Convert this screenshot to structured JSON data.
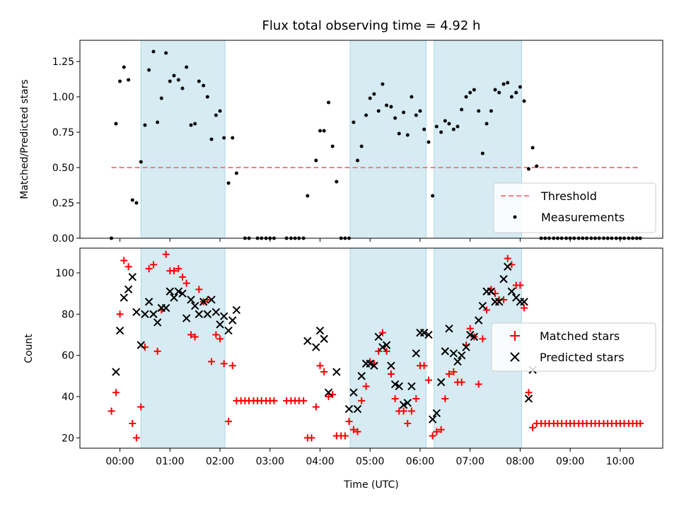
{
  "chart_data": [
    {
      "type": "scatter",
      "title": "Flux total observing time = 4.92 h",
      "xlabel": "",
      "ylabel": "Matched/Predicted stars",
      "xlim": [
        -0.8,
        10.85
      ],
      "ylim": [
        0,
        1.4
      ],
      "yticks": [
        0,
        0.25,
        0.5,
        0.75,
        1.0,
        1.25
      ],
      "ytick_labels": [
        "0.00",
        "0.25",
        "0.50",
        "0.75",
        "1.00",
        "1.25"
      ],
      "shaded_intervals": [
        [
          0.42,
          2.1
        ],
        [
          4.6,
          6.12
        ],
        [
          6.28,
          8.03
        ]
      ],
      "threshold": {
        "label": "Threshold",
        "value": 0.5,
        "x_range": [
          -0.17,
          10.37
        ],
        "color": "#f08080"
      },
      "measurements_label": "Measurements",
      "measurements": [
        [
          -0.17,
          0
        ],
        [
          -0.08,
          0.81
        ],
        [
          0.0,
          1.11
        ],
        [
          0.08,
          1.21
        ],
        [
          0.17,
          1.12
        ],
        [
          0.25,
          0.27
        ],
        [
          0.33,
          0.25
        ],
        [
          0.42,
          0.54
        ],
        [
          0.5,
          0.8
        ],
        [
          0.58,
          1.19
        ],
        [
          0.67,
          1.32
        ],
        [
          0.75,
          0.82
        ],
        [
          0.83,
          0.99
        ],
        [
          0.92,
          1.31
        ],
        [
          1.0,
          1.11
        ],
        [
          1.08,
          1.15
        ],
        [
          1.17,
          1.12
        ],
        [
          1.25,
          1.06
        ],
        [
          1.33,
          1.21
        ],
        [
          1.42,
          0.8
        ],
        [
          1.5,
          0.81
        ],
        [
          1.58,
          1.11
        ],
        [
          1.67,
          1.08
        ],
        [
          1.75,
          1.0
        ],
        [
          1.83,
          0.7
        ],
        [
          1.92,
          0.87
        ],
        [
          2.0,
          0.9
        ],
        [
          2.08,
          0.71
        ],
        [
          2.17,
          0.39
        ],
        [
          2.25,
          0.71
        ],
        [
          2.33,
          0.46
        ],
        [
          2.5,
          0
        ],
        [
          2.58,
          0
        ],
        [
          2.75,
          0
        ],
        [
          2.83,
          0
        ],
        [
          2.92,
          0
        ],
        [
          3.0,
          0
        ],
        [
          3.08,
          0
        ],
        [
          3.33,
          0
        ],
        [
          3.42,
          0
        ],
        [
          3.5,
          0
        ],
        [
          3.58,
          0
        ],
        [
          3.67,
          0
        ],
        [
          3.75,
          0.3
        ],
        [
          3.92,
          0.55
        ],
        [
          4.0,
          0.76
        ],
        [
          4.08,
          0.76
        ],
        [
          4.17,
          0.96
        ],
        [
          4.25,
          0.65
        ],
        [
          4.33,
          0.4
        ],
        [
          4.42,
          0
        ],
        [
          4.5,
          0
        ],
        [
          4.58,
          0
        ],
        [
          4.67,
          0.82
        ],
        [
          4.75,
          0.55
        ],
        [
          4.83,
          0.65
        ],
        [
          4.92,
          0.87
        ],
        [
          5.0,
          0.99
        ],
        [
          5.08,
          1.02
        ],
        [
          5.17,
          0.9
        ],
        [
          5.25,
          1.09
        ],
        [
          5.33,
          0.94
        ],
        [
          5.42,
          0.93
        ],
        [
          5.5,
          0.85
        ],
        [
          5.58,
          0.74
        ],
        [
          5.67,
          0.89
        ],
        [
          5.75,
          0.73
        ],
        [
          5.83,
          1.0
        ],
        [
          5.92,
          0.87
        ],
        [
          6.0,
          0.9
        ],
        [
          6.08,
          0.77
        ],
        [
          6.17,
          0.68
        ],
        [
          6.25,
          0.3
        ],
        [
          6.33,
          0.79
        ],
        [
          6.42,
          0.75
        ],
        [
          6.5,
          0.83
        ],
        [
          6.58,
          0.81
        ],
        [
          6.67,
          0.77
        ],
        [
          6.75,
          0.79
        ],
        [
          6.83,
          0.91
        ],
        [
          6.92,
          1.0
        ],
        [
          7.0,
          1.03
        ],
        [
          7.08,
          1.05
        ],
        [
          7.17,
          0.9
        ],
        [
          7.25,
          0.6
        ],
        [
          7.33,
          0.81
        ],
        [
          7.42,
          0.9
        ],
        [
          7.5,
          1.05
        ],
        [
          7.58,
          1.03
        ],
        [
          7.67,
          1.09
        ],
        [
          7.75,
          1.1
        ],
        [
          7.83,
          1.0
        ],
        [
          7.92,
          1.03
        ],
        [
          8.0,
          1.07
        ],
        [
          8.08,
          0.97
        ],
        [
          8.17,
          0.49
        ],
        [
          8.25,
          0.64
        ],
        [
          8.33,
          0.51
        ],
        [
          8.42,
          0
        ],
        [
          8.5,
          0
        ],
        [
          8.58,
          0
        ],
        [
          8.67,
          0
        ],
        [
          8.75,
          0
        ],
        [
          8.83,
          0
        ],
        [
          8.92,
          0
        ],
        [
          9.0,
          0
        ],
        [
          9.08,
          0
        ],
        [
          9.17,
          0
        ],
        [
          9.25,
          0
        ],
        [
          9.33,
          0
        ],
        [
          9.42,
          0
        ],
        [
          9.5,
          0
        ],
        [
          9.58,
          0
        ],
        [
          9.67,
          0
        ],
        [
          9.75,
          0
        ],
        [
          9.83,
          0
        ],
        [
          9.92,
          0
        ],
        [
          10.0,
          0
        ],
        [
          10.08,
          0
        ],
        [
          10.17,
          0
        ],
        [
          10.25,
          0
        ],
        [
          10.33,
          0
        ],
        [
          10.4,
          0
        ]
      ]
    },
    {
      "type": "scatter",
      "title": "",
      "xlabel": "Time (UTC)",
      "ylabel": "Count",
      "xlim": [
        -0.8,
        10.85
      ],
      "ylim": [
        15,
        112
      ],
      "yticks": [
        20,
        40,
        60,
        80,
        100
      ],
      "ytick_labels": [
        "20",
        "40",
        "60",
        "80",
        "100"
      ],
      "xticks": [
        0,
        1,
        2,
        3,
        4,
        5,
        6,
        7,
        8,
        9,
        10
      ],
      "xtick_labels": [
        "00:00",
        "01:00",
        "02:00",
        "03:00",
        "04:00",
        "05:00",
        "06:00",
        "07:00",
        "08:00",
        "09:00",
        "10:00"
      ],
      "shaded_intervals": [
        [
          0.42,
          2.1
        ],
        [
          4.6,
          6.12
        ],
        [
          6.28,
          8.03
        ]
      ],
      "matched_label": "Matched stars",
      "predicted_label": "Predicted stars",
      "matched_color": "#ff0000",
      "predicted_color": "#000000",
      "matched": [
        [
          -0.17,
          33
        ],
        [
          -0.08,
          42
        ],
        [
          0.0,
          80
        ],
        [
          0.08,
          106
        ],
        [
          0.17,
          103
        ],
        [
          0.25,
          27
        ],
        [
          0.33,
          20
        ],
        [
          0.42,
          35
        ],
        [
          0.5,
          64
        ],
        [
          0.58,
          102
        ],
        [
          0.67,
          104
        ],
        [
          0.75,
          62
        ],
        [
          0.83,
          82
        ],
        [
          0.92,
          109
        ],
        [
          1.0,
          101
        ],
        [
          1.08,
          101
        ],
        [
          1.17,
          102
        ],
        [
          1.25,
          98
        ],
        [
          1.33,
          95
        ],
        [
          1.42,
          70
        ],
        [
          1.5,
          69
        ],
        [
          1.58,
          92
        ],
        [
          1.67,
          86
        ],
        [
          1.75,
          87
        ],
        [
          1.83,
          57
        ],
        [
          1.92,
          70
        ],
        [
          2.0,
          68
        ],
        [
          2.08,
          56
        ],
        [
          2.17,
          28
        ],
        [
          2.25,
          55
        ],
        [
          2.33,
          38
        ],
        [
          2.42,
          38
        ],
        [
          2.5,
          38
        ],
        [
          2.58,
          38
        ],
        [
          2.67,
          38
        ],
        [
          2.75,
          38
        ],
        [
          2.83,
          38
        ],
        [
          2.92,
          38
        ],
        [
          3.0,
          38
        ],
        [
          3.08,
          38
        ],
        [
          3.33,
          38
        ],
        [
          3.42,
          38
        ],
        [
          3.5,
          38
        ],
        [
          3.58,
          38
        ],
        [
          3.67,
          38
        ],
        [
          3.75,
          20
        ],
        [
          3.83,
          20
        ],
        [
          3.92,
          35
        ],
        [
          4.0,
          55
        ],
        [
          4.08,
          52
        ],
        [
          4.17,
          40
        ],
        [
          4.25,
          41
        ],
        [
          4.33,
          21
        ],
        [
          4.42,
          21
        ],
        [
          4.5,
          21
        ],
        [
          4.58,
          28
        ],
        [
          4.67,
          24
        ],
        [
          4.75,
          23
        ],
        [
          4.83,
          38
        ],
        [
          4.92,
          45
        ],
        [
          5.0,
          57
        ],
        [
          5.08,
          56
        ],
        [
          5.17,
          62
        ],
        [
          5.25,
          71
        ],
        [
          5.33,
          62
        ],
        [
          5.42,
          51
        ],
        [
          5.5,
          39
        ],
        [
          5.58,
          33
        ],
        [
          5.67,
          33
        ],
        [
          5.75,
          27
        ],
        [
          5.83,
          33
        ],
        [
          5.92,
          39
        ],
        [
          6.0,
          55
        ],
        [
          6.08,
          55
        ],
        [
          6.17,
          48
        ],
        [
          6.25,
          21
        ],
        [
          6.33,
          23
        ],
        [
          6.42,
          24
        ],
        [
          6.5,
          39
        ],
        [
          6.58,
          51
        ],
        [
          6.67,
          52
        ],
        [
          6.75,
          47
        ],
        [
          6.83,
          47
        ],
        [
          6.92,
          65
        ],
        [
          7.0,
          73
        ],
        [
          7.08,
          69
        ],
        [
          7.17,
          46
        ],
        [
          7.25,
          68
        ],
        [
          7.33,
          82
        ],
        [
          7.42,
          92
        ],
        [
          7.5,
          90
        ],
        [
          7.58,
          87
        ],
        [
          7.67,
          87
        ],
        [
          7.75,
          107
        ],
        [
          7.83,
          104
        ],
        [
          7.92,
          94
        ],
        [
          8.0,
          94
        ],
        [
          8.08,
          83
        ],
        [
          8.17,
          42
        ],
        [
          8.25,
          25
        ],
        [
          8.33,
          27
        ],
        [
          8.42,
          27
        ],
        [
          8.5,
          27
        ],
        [
          8.58,
          27
        ],
        [
          8.67,
          27
        ],
        [
          8.75,
          27
        ],
        [
          8.83,
          27
        ],
        [
          8.92,
          27
        ],
        [
          9.0,
          27
        ],
        [
          9.08,
          27
        ],
        [
          9.17,
          27
        ],
        [
          9.25,
          27
        ],
        [
          9.33,
          27
        ],
        [
          9.42,
          27
        ],
        [
          9.5,
          27
        ],
        [
          9.58,
          27
        ],
        [
          9.67,
          27
        ],
        [
          9.75,
          27
        ],
        [
          9.83,
          27
        ],
        [
          9.92,
          27
        ],
        [
          10.0,
          27
        ],
        [
          10.08,
          27
        ],
        [
          10.17,
          27
        ],
        [
          10.25,
          27
        ],
        [
          10.33,
          27
        ],
        [
          10.4,
          27
        ]
      ],
      "predicted": [
        [
          -0.08,
          52
        ],
        [
          0.0,
          72
        ],
        [
          0.08,
          88
        ],
        [
          0.17,
          92
        ],
        [
          0.25,
          98
        ],
        [
          0.33,
          81
        ],
        [
          0.42,
          65
        ],
        [
          0.5,
          80
        ],
        [
          0.58,
          86
        ],
        [
          0.67,
          80
        ],
        [
          0.75,
          76
        ],
        [
          0.83,
          83
        ],
        [
          0.92,
          83
        ],
        [
          1.0,
          91
        ],
        [
          1.08,
          88
        ],
        [
          1.17,
          91
        ],
        [
          1.25,
          90
        ],
        [
          1.33,
          78
        ],
        [
          1.42,
          87
        ],
        [
          1.5,
          84
        ],
        [
          1.58,
          80
        ],
        [
          1.67,
          86
        ],
        [
          1.75,
          80
        ],
        [
          1.83,
          87
        ],
        [
          1.92,
          81
        ],
        [
          2.0,
          75
        ],
        [
          2.08,
          79
        ],
        [
          2.17,
          72
        ],
        [
          2.25,
          77
        ],
        [
          2.33,
          82
        ],
        [
          3.75,
          67
        ],
        [
          3.92,
          64
        ],
        [
          4.0,
          72
        ],
        [
          4.08,
          68
        ],
        [
          4.17,
          42
        ],
        [
          4.33,
          52
        ],
        [
          4.58,
          34
        ],
        [
          4.67,
          42
        ],
        [
          4.75,
          34
        ],
        [
          4.83,
          50
        ],
        [
          4.92,
          56
        ],
        [
          5.0,
          56
        ],
        [
          5.08,
          55
        ],
        [
          5.17,
          69
        ],
        [
          5.25,
          64
        ],
        [
          5.33,
          65
        ],
        [
          5.42,
          55
        ],
        [
          5.5,
          46
        ],
        [
          5.58,
          45
        ],
        [
          5.67,
          36
        ],
        [
          5.75,
          37
        ],
        [
          5.83,
          45
        ],
        [
          5.92,
          61
        ],
        [
          6.0,
          71
        ],
        [
          6.08,
          71
        ],
        [
          6.17,
          70
        ],
        [
          6.25,
          29
        ],
        [
          6.33,
          32
        ],
        [
          6.42,
          47
        ],
        [
          6.5,
          62
        ],
        [
          6.58,
          73
        ],
        [
          6.67,
          61
        ],
        [
          6.75,
          57
        ],
        [
          6.83,
          60
        ],
        [
          6.92,
          64
        ],
        [
          7.0,
          70
        ],
        [
          7.08,
          69
        ],
        [
          7.17,
          77
        ],
        [
          7.25,
          84
        ],
        [
          7.33,
          91
        ],
        [
          7.42,
          91
        ],
        [
          7.5,
          86
        ],
        [
          7.58,
          86
        ],
        [
          7.67,
          97
        ],
        [
          7.75,
          103
        ],
        [
          7.83,
          91
        ],
        [
          7.92,
          88
        ],
        [
          8.0,
          86
        ],
        [
          8.08,
          86
        ],
        [
          8.17,
          39
        ],
        [
          8.25,
          53
        ]
      ]
    }
  ]
}
